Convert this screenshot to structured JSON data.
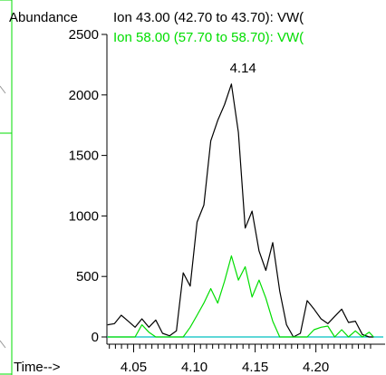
{
  "chart_data": {
    "type": "line",
    "ylabel": "Abundance",
    "xlabel": "Time-->",
    "xlim": [
      4.028,
      4.248
    ],
    "ylim": [
      0,
      2500
    ],
    "x_ticks": [
      "4.05",
      "4.10",
      "4.15",
      "4.20"
    ],
    "y_ticks": [
      "0",
      "500",
      "1000",
      "1500",
      "2000",
      "2500"
    ],
    "grid": false,
    "legend": "top",
    "peak_annotation": {
      "x": 4.14,
      "label": "4.14"
    },
    "colors": {
      "frame": "#00dd00",
      "series1": "#000000",
      "series2": "#00dd00",
      "baseline": "#00c0c0"
    },
    "series": [
      {
        "name": "Ion  43.00 (42.70 to 43.70): VW(",
        "color": "#000000",
        "x": [
          4.0285,
          4.0342,
          4.0398,
          4.0455,
          4.0512,
          4.0568,
          4.0625,
          4.0682,
          4.0738,
          4.0795,
          4.0852,
          4.0908,
          4.0965,
          4.1022,
          4.1078,
          4.1135,
          4.1192,
          4.1248,
          4.1305,
          4.1362,
          4.1418,
          4.1475,
          4.1532,
          4.1588,
          4.1645,
          4.1702,
          4.1758,
          4.1815,
          4.1872,
          4.1928,
          4.1985,
          4.2042,
          4.2098,
          4.2155,
          4.2212,
          4.2268,
          4.2325,
          4.2382,
          4.2438,
          4.2475
        ],
        "y": [
          100,
          110,
          180,
          130,
          80,
          150,
          80,
          140,
          30,
          10,
          50,
          530,
          420,
          950,
          1090,
          1620,
          1790,
          1920,
          2090,
          1690,
          900,
          1040,
          710,
          550,
          780,
          380,
          100,
          0,
          30,
          300,
          230,
          150,
          110,
          170,
          230,
          120,
          130,
          20,
          0,
          0
        ]
      },
      {
        "name": "Ion  58.00 (57.70 to 58.70): VW(",
        "color": "#00dd00",
        "x": [
          4.0285,
          4.0342,
          4.0398,
          4.0455,
          4.0512,
          4.0568,
          4.0625,
          4.0682,
          4.0738,
          4.0795,
          4.0852,
          4.0908,
          4.0965,
          4.1022,
          4.1078,
          4.1135,
          4.1192,
          4.1248,
          4.1305,
          4.1362,
          4.1418,
          4.1475,
          4.1532,
          4.1588,
          4.1645,
          4.1702,
          4.1758,
          4.1815,
          4.1872,
          4.1928,
          4.1985,
          4.2042,
          4.2098,
          4.2155,
          4.2212,
          4.2268,
          4.2325,
          4.2382,
          4.2438,
          4.2475
        ],
        "y": [
          0,
          0,
          0,
          0,
          0,
          100,
          40,
          0,
          0,
          0,
          0,
          0,
          80,
          180,
          280,
          400,
          280,
          460,
          670,
          470,
          580,
          330,
          470,
          320,
          130,
          0,
          0,
          0,
          0,
          0,
          60,
          80,
          90,
          0,
          60,
          0,
          50,
          0,
          40,
          0
        ]
      }
    ]
  }
}
